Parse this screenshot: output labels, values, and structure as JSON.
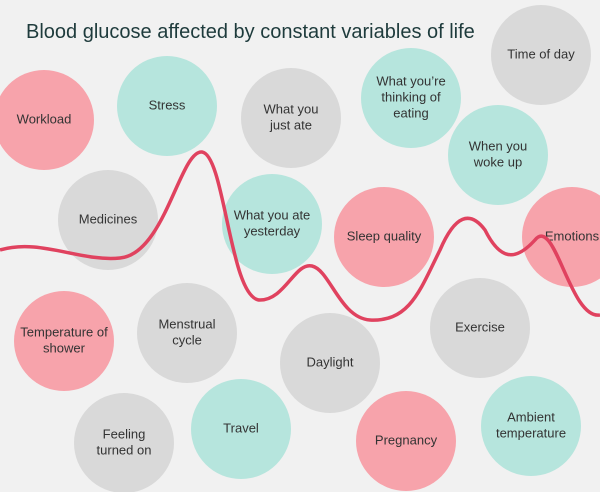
{
  "title": "Blood glucose affected by constant variables of life",
  "nodes": [
    {
      "lines": [
        "Workload"
      ],
      "color": "#f7a3ab"
    },
    {
      "lines": [
        "Stress"
      ],
      "color": "#b6e5dd"
    },
    {
      "lines": [
        "What you",
        "just ate"
      ],
      "color": "#d9d9d9"
    },
    {
      "lines": [
        "What you’re",
        "thinking of",
        "eating"
      ],
      "color": "#b6e5dd"
    },
    {
      "lines": [
        "Time of day"
      ],
      "color": "#d9d9d9"
    },
    {
      "lines": [
        "When you",
        "woke up"
      ],
      "color": "#b6e5dd"
    },
    {
      "lines": [
        "Medicines"
      ],
      "color": "#d9d9d9"
    },
    {
      "lines": [
        "What you ate",
        "yesterday"
      ],
      "color": "#b6e5dd"
    },
    {
      "lines": [
        "Sleep quality"
      ],
      "color": "#f7a3ab"
    },
    {
      "lines": [
        "Emotions"
      ],
      "color": "#f7a3ab"
    },
    {
      "lines": [
        "Temperature of",
        "shower"
      ],
      "color": "#f7a3ab"
    },
    {
      "lines": [
        "Menstrual",
        "cycle"
      ],
      "color": "#d9d9d9"
    },
    {
      "lines": [
        "Daylight"
      ],
      "color": "#d9d9d9"
    },
    {
      "lines": [
        "Exercise"
      ],
      "color": "#d9d9d9"
    },
    {
      "lines": [
        "Feeling",
        "turned on"
      ],
      "color": "#d9d9d9"
    },
    {
      "lines": [
        "Travel"
      ],
      "color": "#b6e5dd"
    },
    {
      "lines": [
        "Pregnancy"
      ],
      "color": "#f7a3ab"
    },
    {
      "lines": [
        "Ambient",
        "temperature"
      ],
      "color": "#b6e5dd"
    }
  ]
}
